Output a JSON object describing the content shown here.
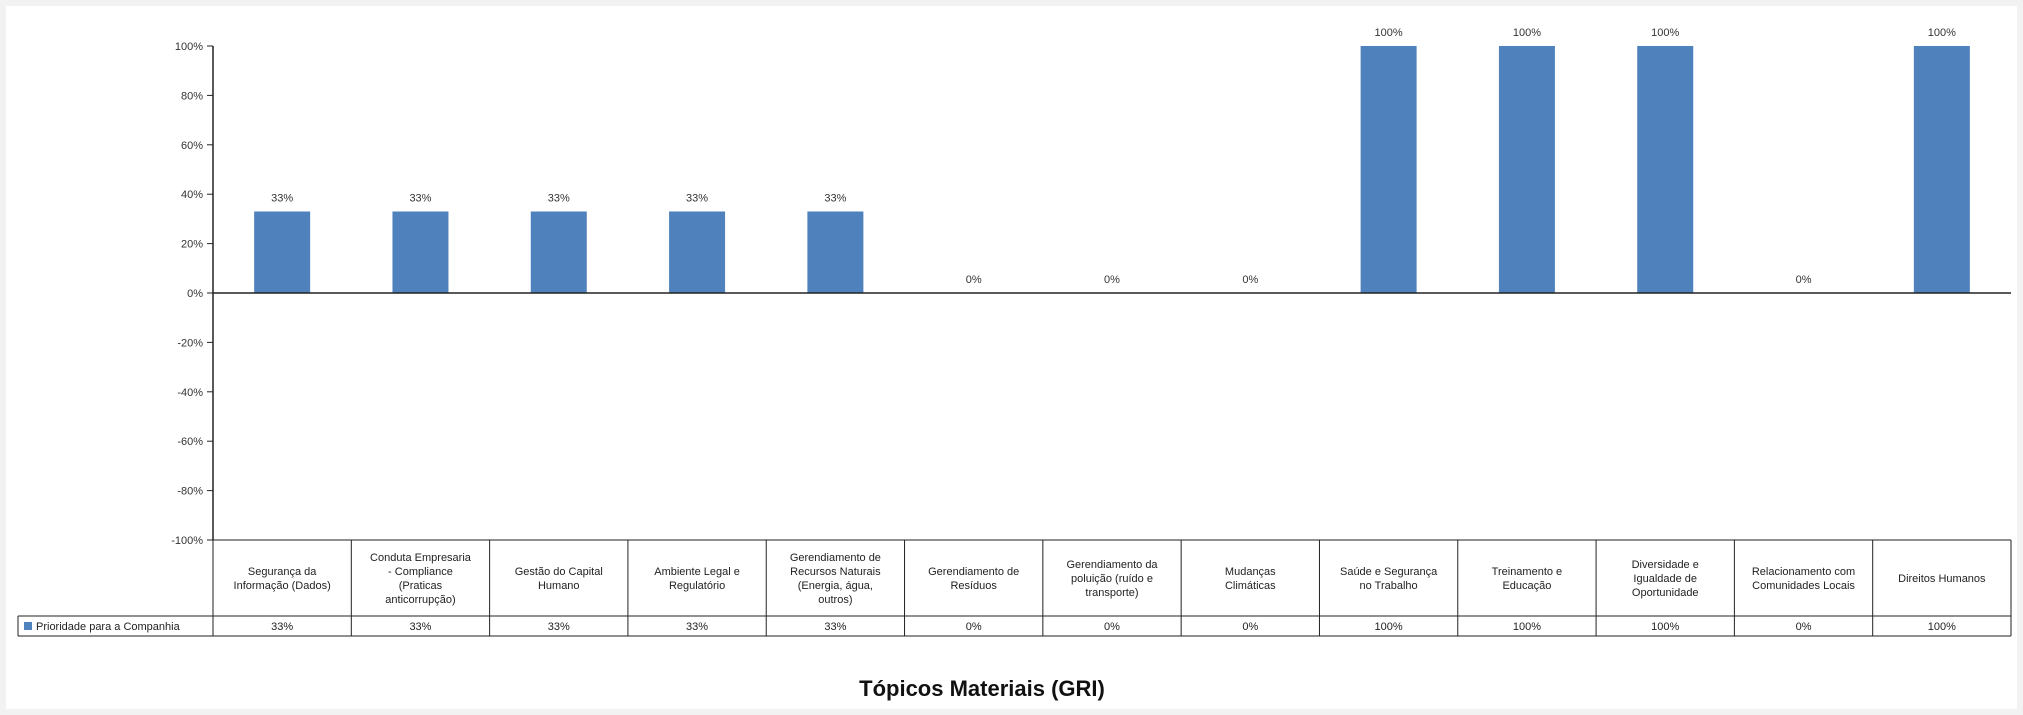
{
  "chart_data": {
    "type": "bar",
    "title": "",
    "xlabel": "Tópicos Materiais (GRI)",
    "ylabel": "",
    "ylim": [
      -100,
      100
    ],
    "y_tick_step": 20,
    "y_tick_suffix": "%",
    "grid": false,
    "legend_placement": "data-table-row",
    "categories": [
      "Segurança da Informação (Dados)",
      "Conduta Empresaria - Compliance (Praticas anticorrupção)",
      "Gestão do Capital Humano",
      "Ambiente Legal e Regulatório",
      "Gerendiamento de Recursos Naturais (Energia, água, outros)",
      "Gerendiamento de Resíduos",
      "Gerendiamento da poluição (ruído e transporte)",
      "Mudanças Climáticas",
      "Saúde e Segurança no Trabalho",
      "Treinamento e Educação",
      "Diversidade e Igualdade de Oportunidade",
      "Relacionamento com Comunidades Locais",
      "Direitos Humanos"
    ],
    "series": [
      {
        "name": "Prioridade para a Companhia",
        "color": "#4f81bd",
        "values": [
          33,
          33,
          33,
          33,
          33,
          0,
          0,
          0,
          100,
          100,
          100,
          0,
          100
        ],
        "labels": [
          "33%",
          "33%",
          "33%",
          "33%",
          "33%",
          "0%",
          "0%",
          "0%",
          "100%",
          "100%",
          "100%",
          "0%",
          "100%"
        ]
      }
    ]
  }
}
